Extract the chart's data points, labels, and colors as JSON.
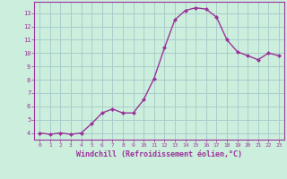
{
  "x": [
    0,
    1,
    2,
    3,
    4,
    5,
    6,
    7,
    8,
    9,
    10,
    11,
    12,
    13,
    14,
    15,
    16,
    17,
    18,
    19,
    20,
    21,
    22,
    23
  ],
  "y": [
    4.0,
    3.9,
    4.0,
    3.9,
    4.0,
    4.7,
    5.5,
    5.8,
    5.5,
    5.5,
    6.5,
    8.1,
    10.4,
    12.5,
    13.2,
    13.4,
    13.3,
    12.7,
    11.0,
    10.1,
    9.8,
    9.5,
    10.0,
    9.8
  ],
  "line_color": "#993399",
  "marker": "D",
  "marker_size": 2.0,
  "linewidth": 1.0,
  "xlabel": "Windchill (Refroidissement éolien,°C)",
  "xlabel_fontsize": 6,
  "ylabel_ticks": [
    4,
    5,
    6,
    7,
    8,
    9,
    10,
    11,
    12,
    13
  ],
  "xlim": [
    -0.5,
    23.5
  ],
  "ylim": [
    3.5,
    13.85
  ],
  "xtick_labels": [
    "0",
    "1",
    "2",
    "3",
    "4",
    "5",
    "6",
    "7",
    "8",
    "9",
    "10",
    "11",
    "12",
    "13",
    "14",
    "15",
    "16",
    "17",
    "18",
    "19",
    "20",
    "21",
    "22",
    "23"
  ],
  "background_color": "#cceedd",
  "grid_color": "#aacccc",
  "spine_color": "#993399",
  "label_color": "#993399"
}
